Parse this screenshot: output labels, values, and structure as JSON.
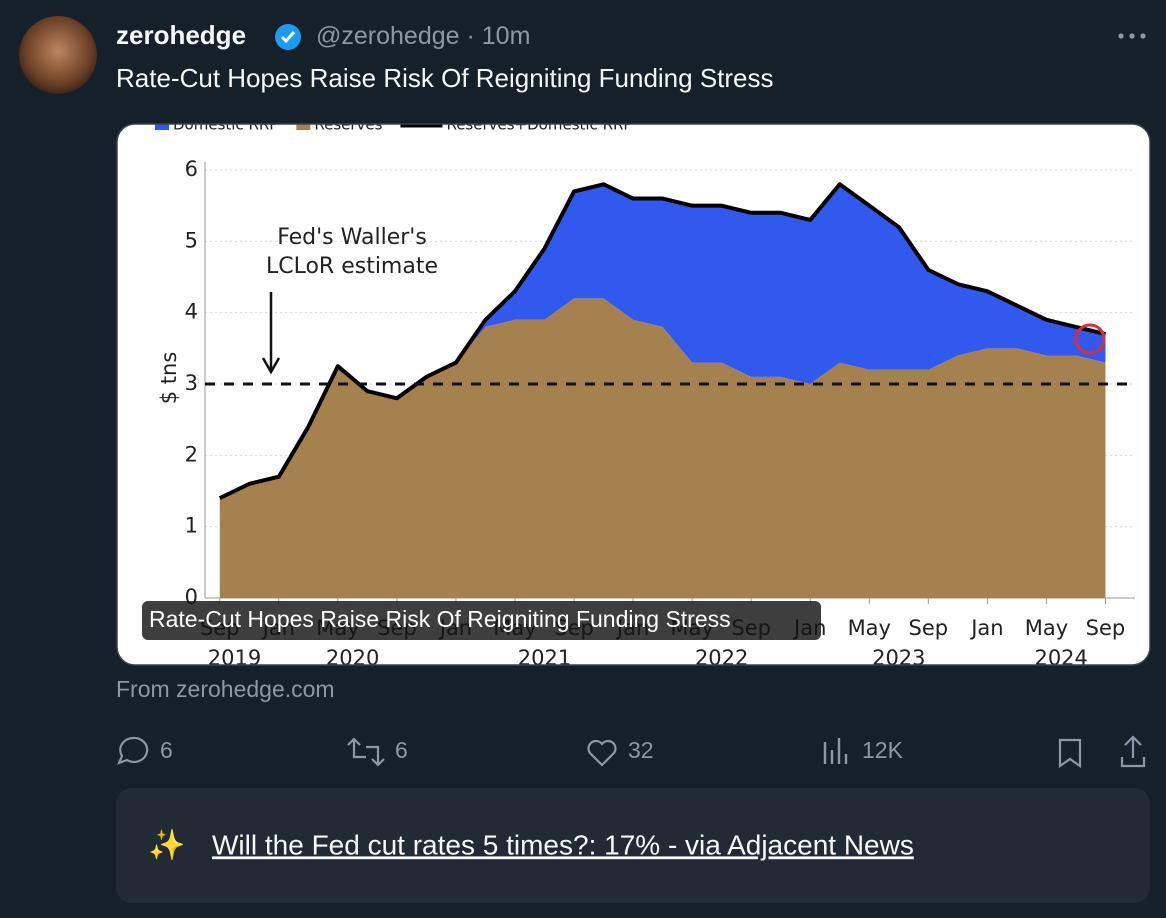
{
  "tweet": {
    "author_name": "zerohedge",
    "handle": "@zerohedge",
    "separator": "·",
    "time": "10m",
    "text": "Rate-Cut Hopes Raise Risk Of Reigniting Funding Stress"
  },
  "card": {
    "caption": "Rate-Cut Hopes Raise Risk Of Reigniting Funding Stress",
    "source": "From zerohedge.com"
  },
  "chart_data": {
    "type": "stacked-area",
    "ylabel": "$ tns",
    "annotation": [
      "Fed's Waller's",
      "LCLoR estimate"
    ],
    "hline": 3,
    "x": [
      "2019-09",
      "2019-11",
      "2020-01",
      "2020-03",
      "2020-05",
      "2020-07",
      "2020-09",
      "2020-11",
      "2021-01",
      "2021-03",
      "2021-05",
      "2021-07",
      "2021-09",
      "2021-11",
      "2022-01",
      "2022-03",
      "2022-05",
      "2022-07",
      "2022-09",
      "2022-11",
      "2023-01",
      "2023-03",
      "2023-05",
      "2023-07",
      "2023-09",
      "2023-11",
      "2024-01",
      "2024-03",
      "2024-05",
      "2024-07",
      "2024-09"
    ],
    "series": [
      {
        "name": "Domestic RRP",
        "color": "#3159ee",
        "stack": true,
        "values": [
          0,
          0,
          0,
          0,
          0.05,
          0,
          0,
          0,
          0,
          0.1,
          0.4,
          1.0,
          1.5,
          1.6,
          1.7,
          1.8,
          2.2,
          2.2,
          2.3,
          2.3,
          2.3,
          2.5,
          2.3,
          2.0,
          1.4,
          1.0,
          0.8,
          0.6,
          0.5,
          0.4,
          0.4
        ]
      },
      {
        "name": "Reserves",
        "color": "#a5814f",
        "stack": true,
        "values": [
          1.4,
          1.6,
          1.7,
          2.4,
          3.2,
          2.9,
          2.8,
          3.1,
          3.3,
          3.8,
          3.9,
          3.9,
          4.2,
          4.2,
          3.9,
          3.8,
          3.3,
          3.3,
          3.1,
          3.1,
          3.0,
          3.3,
          3.2,
          3.2,
          3.2,
          3.4,
          3.5,
          3.5,
          3.4,
          3.4,
          3.3
        ]
      },
      {
        "name": "Reserves+Domestic RRP",
        "color": "#000000",
        "stack": false,
        "values": [
          1.4,
          1.6,
          1.7,
          2.4,
          3.25,
          2.9,
          2.8,
          3.1,
          3.3,
          3.9,
          4.3,
          4.9,
          5.7,
          5.8,
          5.6,
          5.6,
          5.5,
          5.5,
          5.4,
          5.4,
          5.3,
          5.8,
          5.5,
          5.2,
          4.6,
          4.4,
          4.3,
          4.1,
          3.9,
          3.8,
          3.7
        ]
      }
    ],
    "xlim": [
      "2019-08",
      "2024-11"
    ],
    "xticks": [
      {
        "value": "2019-09",
        "label": "Sep"
      },
      {
        "value": "2020-01",
        "label": "Jan"
      },
      {
        "value": "2020-05",
        "label": "May"
      },
      {
        "value": "2020-09",
        "label": "Sep"
      },
      {
        "value": "2021-01",
        "label": "Jan"
      },
      {
        "value": "2021-05",
        "label": "May"
      },
      {
        "value": "2021-09",
        "label": "Sep"
      },
      {
        "value": "2022-01",
        "label": "Jan"
      },
      {
        "value": "2022-05",
        "label": "May"
      },
      {
        "value": "2022-09",
        "label": "Sep"
      },
      {
        "value": "2023-01",
        "label": "Jan"
      },
      {
        "value": "2023-05",
        "label": "May"
      },
      {
        "value": "2023-09",
        "label": "Sep"
      },
      {
        "value": "2024-01",
        "label": "Jan"
      },
      {
        "value": "2024-05",
        "label": "May"
      },
      {
        "value": "2024-09",
        "label": "Sep"
      }
    ],
    "xyears": [
      {
        "value": "2019-10",
        "label": "2019"
      },
      {
        "value": "2020-06",
        "label": "2020"
      },
      {
        "value": "2021-07",
        "label": "2021"
      },
      {
        "value": "2022-07",
        "label": "2022"
      },
      {
        "value": "2023-07",
        "label": "2023"
      },
      {
        "value": "2024-06",
        "label": "2024"
      }
    ],
    "ylim": [
      0,
      6
    ],
    "yticks": [
      0,
      1,
      2,
      3,
      4,
      5,
      6
    ],
    "grid": true
  },
  "actions": {
    "replies": 6,
    "reposts": 6,
    "likes": 32,
    "views": "12K"
  },
  "note": {
    "icon": "✨",
    "text": "Will the Fed cut rates 5 times?: 17% - via Adjacent News"
  }
}
